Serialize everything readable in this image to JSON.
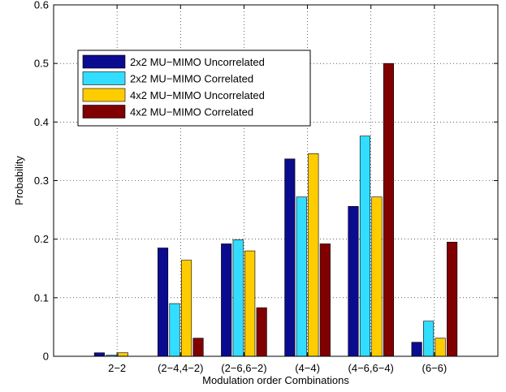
{
  "chart_data": {
    "type": "bar",
    "title": "",
    "xlabel": "Modulation order Combinations",
    "ylabel": "Probability",
    "ylim": [
      0,
      0.6
    ],
    "yticks": [
      "0",
      "0.1",
      "0.2",
      "0.3",
      "0.4",
      "0.5",
      "0.6"
    ],
    "grid": true,
    "legend_position": "top-left",
    "categories": [
      "2−2",
      "(2−4,4−2)",
      "(2−6,6−2)",
      "(4−4)",
      "(4−6,6−4)",
      "(6−6)"
    ],
    "series": [
      {
        "name": "2x2 MU−MIMO Uncorrelated",
        "color": "#0b0b8f",
        "values": [
          0.006,
          0.185,
          0.192,
          0.337,
          0.256,
          0.024
        ]
      },
      {
        "name": "2x2 MU−MIMO Correlated",
        "color": "#33ddff",
        "values": [
          0.002,
          0.09,
          0.199,
          0.272,
          0.376,
          0.06
        ]
      },
      {
        "name": "4x2 MU−MIMO Uncorrelated",
        "color": "#ffcc00",
        "values": [
          0.006,
          0.164,
          0.18,
          0.346,
          0.272,
          0.031
        ]
      },
      {
        "name": "4x2 MU−MIMO Correlated",
        "color": "#800000",
        "values": [
          0.0,
          0.031,
          0.083,
          0.192,
          0.5,
          0.195
        ]
      }
    ]
  }
}
